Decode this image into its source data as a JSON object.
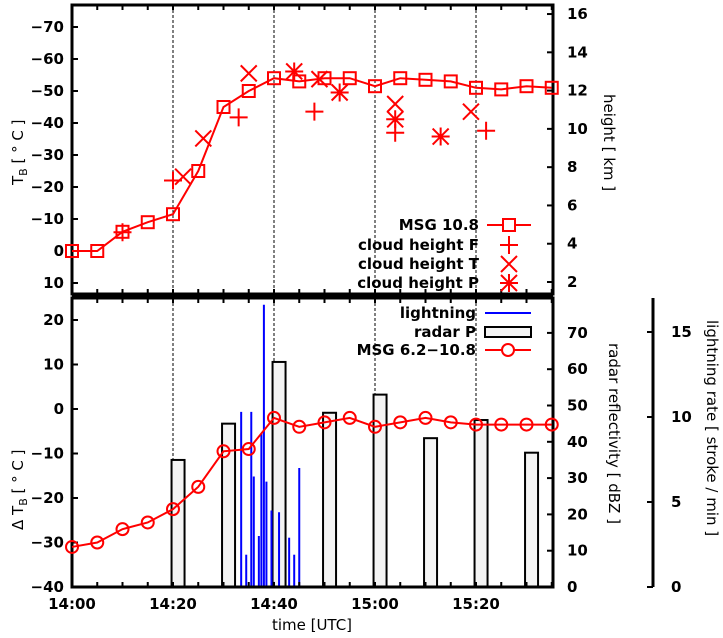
{
  "chart_data": [
    {
      "type": "line",
      "panel": "top",
      "title": "",
      "xlabel": "",
      "ylabel": "T_B [ ° C ]",
      "y2label": "height [ km ]",
      "ylim": [
        10,
        -77
      ],
      "y2lim": [
        1.3,
        16.5
      ],
      "yticks": [
        "-70",
        "-60",
        "-50",
        "-40",
        "-30",
        "-20",
        "-10",
        "0",
        "10"
      ],
      "y2ticks": [
        "16",
        "14",
        "12",
        "10",
        "8",
        "6",
        "4",
        "2"
      ],
      "grid": "vertical dashed at 20-min ticks",
      "legend_position": "lower right",
      "series": [
        {
          "name": "MSG 10.8",
          "marker": "square",
          "line": true,
          "axis": "y",
          "x": [
            "14:00",
            "14:05",
            "14:10",
            "14:15",
            "14:20",
            "14:25",
            "14:30",
            "14:35",
            "14:40",
            "14:45",
            "14:50",
            "14:55",
            "15:00",
            "15:05",
            "15:10",
            "15:15",
            "15:20",
            "15:25",
            "15:30",
            "15:35"
          ],
          "values": [
            0,
            0,
            -6,
            -9,
            -11.5,
            -25,
            -45,
            -50,
            -54,
            -53,
            -54,
            -54,
            -51.5,
            -54,
            -53.5,
            -53,
            -51,
            -50.5,
            -51.5,
            -51
          ]
        },
        {
          "name": "cloud height F",
          "marker": "plus",
          "line": false,
          "axis": "y2",
          "x": [
            "14:10",
            "14:20",
            "14:33",
            "14:48",
            "15:04",
            "15:22"
          ],
          "values": [
            4.6,
            7.3,
            10.6,
            10.9,
            9.8,
            9.9
          ]
        },
        {
          "name": "cloud height T",
          "marker": "x",
          "line": false,
          "axis": "y2",
          "x": [
            "14:22",
            "14:26",
            "14:35",
            "14:49",
            "15:04",
            "15:19"
          ],
          "values": [
            7.5,
            9.5,
            12.9,
            12.6,
            11.3,
            10.9
          ]
        },
        {
          "name": "cloud height P",
          "marker": "star",
          "line": false,
          "axis": "y2",
          "x": [
            "14:44",
            "14:53",
            "15:04",
            "15:13"
          ],
          "values": [
            13.0,
            11.9,
            10.5,
            9.6
          ]
        }
      ]
    },
    {
      "type": "bar",
      "panel": "bottom",
      "title": "",
      "xlabel": "time [UTC]",
      "ylabel": "Δ T_B [ ° C ]",
      "y2label": "radar reflectivity [ dBZ ]",
      "y3label": "lightning rate [ stroke / min ]",
      "ylim": [
        -40,
        25
      ],
      "y2lim": [
        0,
        77
      ],
      "y3lim": [
        0,
        17
      ],
      "xticks": [
        "14:00",
        "14:20",
        "14:40",
        "15:00",
        "15:20"
      ],
      "yticks": [
        "20",
        "10",
        "0",
        "-10",
        "-20",
        "-30",
        "-40"
      ],
      "y2ticks": [
        "70",
        "60",
        "50",
        "40",
        "30",
        "20",
        "10",
        "0"
      ],
      "y3ticks": [
        "15",
        "10",
        "5",
        "0"
      ],
      "legend_position": "upper right",
      "series": [
        {
          "name": "lightning",
          "type": "impulse",
          "axis": "y3",
          "x": [
            "14:33.5",
            "14:34.5",
            "14:35.5",
            "14:36",
            "14:37",
            "14:37.5",
            "14:38",
            "14:38.5",
            "14:39.5",
            "14:40",
            "14:41",
            "14:43",
            "14:44",
            "14:45"
          ],
          "values": [
            10.3,
            1.9,
            10.3,
            6.5,
            3.0,
            9.0,
            16.6,
            6.2,
            4.5,
            0.3,
            4.4,
            2.9,
            1.9,
            7.0
          ]
        },
        {
          "name": "radar P",
          "type": "bar",
          "axis": "y2",
          "x": [
            "14:21",
            "14:31",
            "14:41",
            "14:51",
            "15:01",
            "15:11",
            "15:21",
            "15:31"
          ],
          "values": [
            35,
            45,
            62,
            48,
            53,
            41,
            46,
            37
          ]
        },
        {
          "name": "MSG 6.2−10.8",
          "type": "line",
          "marker": "circle",
          "axis": "y",
          "x": [
            "14:00",
            "14:05",
            "14:10",
            "14:15",
            "14:20",
            "14:25",
            "14:30",
            "14:35",
            "14:40",
            "14:45",
            "14:50",
            "14:55",
            "15:00",
            "15:05",
            "15:10",
            "15:15",
            "15:20",
            "15:25",
            "15:30",
            "15:35"
          ],
          "values": [
            -31,
            -30,
            -27,
            -25.5,
            -22.5,
            -17.5,
            -9.5,
            -9,
            -2,
            -4,
            -3,
            -2,
            -4,
            -3,
            -2,
            -3,
            -3.5,
            -3.5,
            -3.5,
            -3.5
          ]
        }
      ]
    }
  ],
  "labels": {
    "top_ylabel_main": "T",
    "top_ylabel_sub": "B",
    "top_ylabel_rest": " [ ° C ]",
    "top_y2label": "height [ km ]",
    "bot_ylabel_pre": "Δ T",
    "bot_ylabel_sub": "B",
    "bot_ylabel_rest": " [ ° C ]",
    "bot_y2label": "radar reflectivity [ dBZ ]",
    "bot_y3label": "lightning rate [ stroke / min ]",
    "xlabel": "time [UTC]"
  },
  "legend_top": [
    "MSG 10.8",
    "cloud height F",
    "cloud height T",
    "cloud height P"
  ],
  "legend_bottom": [
    "lightning",
    "radar P",
    "MSG 6.2−10.8"
  ],
  "colors": {
    "red": "#ff0000",
    "blue": "#0000ff",
    "bar_fill": "#f4f4f4",
    "axis": "#000000"
  }
}
